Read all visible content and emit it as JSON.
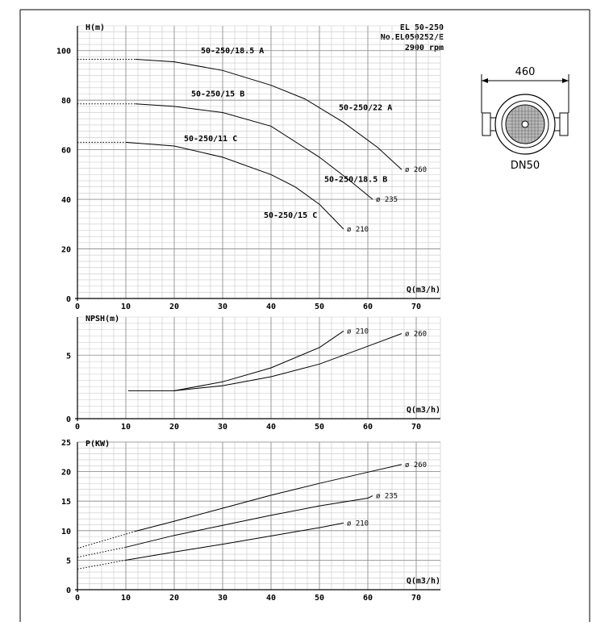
{
  "header": {
    "model": "EL 50-250",
    "number": "No.EL050252/E",
    "speed": "2900 rpm"
  },
  "pump_drawing": {
    "dimension": "460",
    "size": "DN50"
  },
  "chart_data": [
    {
      "type": "line",
      "name_label": "H(m)",
      "xlabel": "Q(m3/h)",
      "ylabel": "H(m)",
      "xlim": [
        0,
        75
      ],
      "ylim": [
        0,
        110
      ],
      "x_ticks": [
        0,
        10,
        20,
        30,
        40,
        50,
        60,
        70
      ],
      "y_ticks": [
        0,
        20,
        40,
        60,
        80,
        100
      ],
      "grid": true,
      "series": [
        {
          "name": "50-250/18.5 A",
          "points": [
            [
              0,
              96.5
            ],
            [
              12,
              96.5
            ],
            [
              20,
              95.5
            ],
            [
              30,
              92
            ],
            [
              40,
              86
            ],
            [
              47,
              80.5
            ],
            [
              55,
              71
            ],
            [
              62,
              61
            ],
            [
              67,
              52
            ]
          ]
        },
        {
          "name": "50-250/22 A",
          "points": [
            [
              0,
              96.5
            ],
            [
              12,
              96.5
            ],
            [
              20,
              95.5
            ],
            [
              30,
              92
            ],
            [
              40,
              86
            ],
            [
              47,
              80.5
            ],
            [
              55,
              71
            ],
            [
              62,
              61
            ],
            [
              67,
              52
            ]
          ]
        },
        {
          "name": "50-250/15 B",
          "points": [
            [
              0,
              78.5
            ],
            [
              12,
              78.5
            ],
            [
              20,
              77.5
            ],
            [
              30,
              75
            ],
            [
              40,
              69.5
            ],
            [
              50,
              57
            ],
            [
              56,
              48
            ],
            [
              61,
              40
            ]
          ]
        },
        {
          "name": "50-250/18.5 B",
          "points": [
            [
              0,
              78.5
            ],
            [
              12,
              78.5
            ],
            [
              20,
              77.5
            ],
            [
              30,
              75
            ],
            [
              40,
              69.5
            ],
            [
              50,
              57
            ],
            [
              56,
              48
            ],
            [
              61,
              40
            ]
          ]
        },
        {
          "name": "50-250/11 C",
          "points": [
            [
              0,
              63
            ],
            [
              10,
              63
            ],
            [
              20,
              61.5
            ],
            [
              30,
              57
            ],
            [
              40,
              50
            ],
            [
              45,
              45
            ],
            [
              50,
              38
            ],
            [
              55,
              28
            ]
          ]
        },
        {
          "name": "50-250/15 C",
          "points": [
            [
              0,
              63
            ],
            [
              10,
              63
            ],
            [
              20,
              61.5
            ],
            [
              30,
              57
            ],
            [
              40,
              50
            ],
            [
              45,
              45
            ],
            [
              50,
              38
            ],
            [
              55,
              28
            ]
          ]
        }
      ],
      "end_labels": [
        "ø 260",
        "ø 235",
        "ø 210"
      ]
    },
    {
      "type": "line",
      "name_label": "NPSH(m)",
      "xlabel": "Q(m3/h)",
      "ylabel": "NPSH(m)",
      "xlim": [
        0,
        75
      ],
      "ylim": [
        0,
        8
      ],
      "x_ticks": [
        0,
        10,
        20,
        30,
        40,
        50,
        60,
        70
      ],
      "y_ticks": [
        0,
        5
      ],
      "grid": true,
      "series": [
        {
          "name": "ø 210",
          "points": [
            [
              10.5,
              2.2
            ],
            [
              20,
              2.2
            ],
            [
              30,
              2.9
            ],
            [
              40,
              4.0
            ],
            [
              50,
              5.6
            ],
            [
              55,
              6.9
            ]
          ]
        },
        {
          "name": "ø 260",
          "points": [
            [
              20,
              2.2
            ],
            [
              30,
              2.6
            ],
            [
              40,
              3.3
            ],
            [
              50,
              4.3
            ],
            [
              60,
              5.7
            ],
            [
              67,
              6.7
            ]
          ]
        }
      ]
    },
    {
      "type": "line",
      "name_label": "P(KW)",
      "xlabel": "Q(m3/h)",
      "ylabel": "P(KW)",
      "xlim": [
        0,
        75
      ],
      "ylim": [
        0,
        25
      ],
      "x_ticks": [
        0,
        10,
        20,
        30,
        40,
        50,
        60,
        70
      ],
      "y_ticks": [
        0,
        5,
        10,
        15,
        20,
        25
      ],
      "grid": true,
      "series": [
        {
          "name": "ø 260",
          "points": [
            [
              0,
              7
            ],
            [
              12,
              9.9
            ],
            [
              20,
              11.6
            ],
            [
              30,
              13.8
            ],
            [
              40,
              16
            ],
            [
              50,
              18
            ],
            [
              60,
              19.9
            ],
            [
              67,
              21.2
            ]
          ]
        },
        {
          "name": "ø 235",
          "points": [
            [
              0,
              5.5
            ],
            [
              10,
              7.2
            ],
            [
              20,
              9.2
            ],
            [
              30,
              10.9
            ],
            [
              40,
              12.6
            ],
            [
              50,
              14.2
            ],
            [
              60,
              15.5
            ],
            [
              61,
              15.9
            ]
          ]
        },
        {
          "name": "ø 210",
          "points": [
            [
              0,
              3.5
            ],
            [
              10,
              5
            ],
            [
              20,
              6.4
            ],
            [
              30,
              7.7
            ],
            [
              40,
              9.1
            ],
            [
              50,
              10.5
            ],
            [
              55,
              11.3
            ]
          ]
        }
      ]
    }
  ],
  "labels": {
    "curves": [
      "50-250/18.5 A",
      "50-250/22 A",
      "50-250/15 B",
      "50-250/18.5 B",
      "50-250/11 C",
      "50-250/15 C"
    ],
    "diams": [
      "ø 260",
      "ø 235",
      "ø 210"
    ]
  }
}
